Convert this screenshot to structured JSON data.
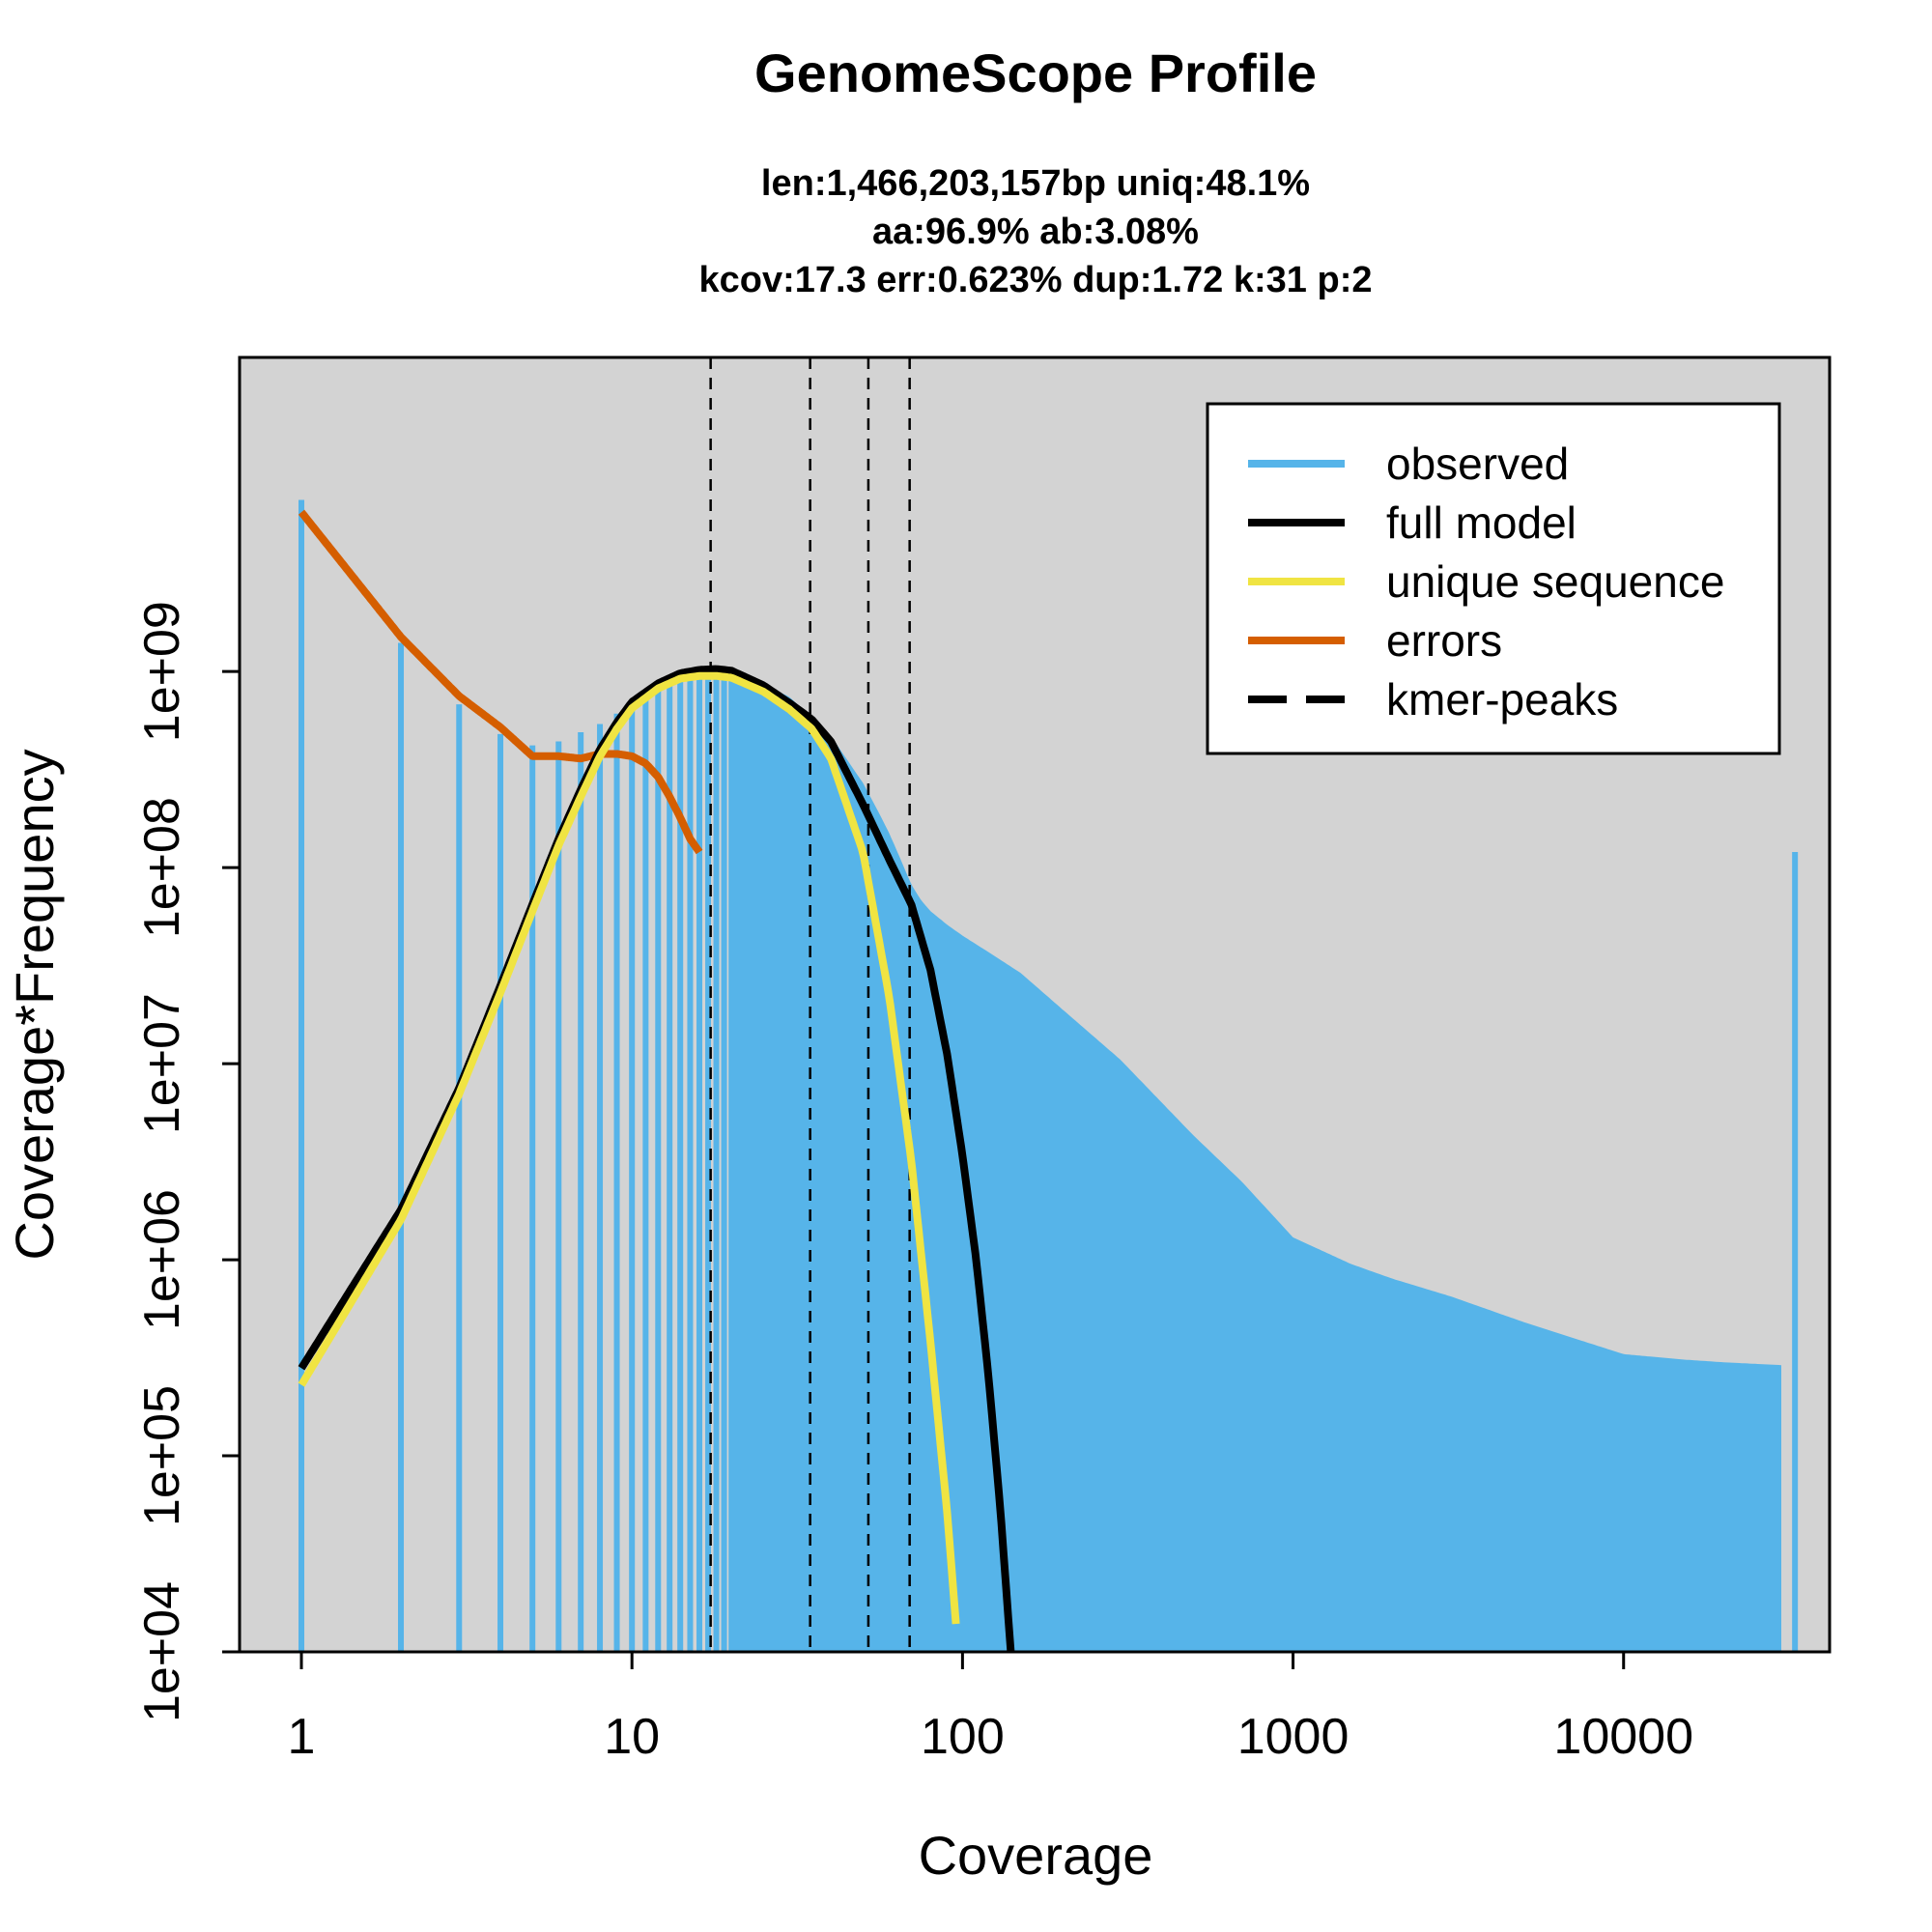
{
  "chart_data": {
    "type": "line",
    "title": "GenomeScope Profile",
    "subtitle_lines": [
      "len:1,466,203,157bp uniq:48.1%",
      "aa:96.9% ab:3.08%",
      "kcov:17.3 err:0.623%  dup:1.72  k:31 p:2"
    ],
    "xlabel": "Coverage",
    "ylabel": "Coverage*Frequency",
    "x_scale": "log",
    "y_scale": "log",
    "xlim": [
      0.65,
      42000
    ],
    "ylim": [
      10000,
      40000000000
    ],
    "x_ticks": [
      {
        "value": 1,
        "label": "1"
      },
      {
        "value": 10,
        "label": "10"
      },
      {
        "value": 100,
        "label": "100"
      },
      {
        "value": 1000,
        "label": "1000"
      },
      {
        "value": 10000,
        "label": "10000"
      }
    ],
    "y_ticks": [
      {
        "value": 10000,
        "label": "1e+04"
      },
      {
        "value": 100000,
        "label": "1e+05"
      },
      {
        "value": 1000000,
        "label": "1e+06"
      },
      {
        "value": 10000000,
        "label": "1e+07"
      },
      {
        "value": 100000000,
        "label": "1e+08"
      },
      {
        "value": 1000000000,
        "label": "1e+09"
      }
    ],
    "background_color": "#d3d3d3",
    "legend_position": "top-right",
    "legend": [
      {
        "label": "observed",
        "color": "#56b4e9",
        "style": "solid"
      },
      {
        "label": "full model",
        "color": "#000000",
        "style": "solid"
      },
      {
        "label": "unique sequence",
        "color": "#f0e442",
        "style": "solid"
      },
      {
        "label": "errors",
        "color": "#d55e00",
        "style": "solid"
      },
      {
        "label": "kmer-peaks",
        "color": "#000000",
        "style": "dashed"
      }
    ],
    "kmer_peaks": [
      17.3,
      34.6,
      51.9,
      69.2
    ],
    "series": [
      {
        "name": "observed",
        "type": "histogram",
        "color": "#56b4e9",
        "x": [
          1,
          2,
          3,
          4,
          5,
          6,
          7,
          8,
          9,
          10,
          11,
          12,
          13,
          14,
          15,
          16,
          17,
          18,
          19,
          20,
          22,
          25,
          30,
          35,
          40,
          45,
          50,
          55,
          60,
          65,
          70,
          75,
          80,
          90,
          100,
          120,
          150,
          200,
          300,
          500,
          700,
          1000,
          1500,
          2000,
          3000,
          5000,
          7000,
          10000,
          15000,
          20000,
          30000,
          33000
        ],
        "values": [
          7500000000,
          1400000000,
          680000000,
          480000000,
          420000000,
          440000000,
          490000000,
          540000000,
          610000000,
          690000000,
          760000000,
          830000000,
          890000000,
          930000000,
          980000000,
          1000000000,
          1010000000,
          1020000000,
          1010000000,
          990000000,
          950000000,
          870000000,
          740000000,
          580000000,
          470000000,
          350000000,
          270000000,
          200000000,
          150000000,
          110000000,
          82000000,
          68000000,
          60000000,
          51000000,
          45000000,
          37000000,
          29000000,
          19000000,
          10500000,
          4300000,
          2500000,
          1300000,
          950000,
          800000,
          650000,
          480000,
          400000,
          330000,
          310000,
          300000,
          290000,
          120000000
        ]
      },
      {
        "name": "full model",
        "color": "#000000",
        "x": [
          1,
          2,
          3,
          4,
          5,
          6,
          7,
          8,
          9,
          10,
          12,
          14,
          16,
          18,
          20,
          25,
          30,
          35,
          40,
          50,
          60,
          70,
          80,
          90,
          100,
          110,
          120,
          130,
          140
        ],
        "values": [
          280000,
          1800000,
          7500000,
          25000000,
          65000000,
          140000000,
          250000000,
          400000000,
          550000000,
          700000000,
          870000000,
          980000000,
          1020000000,
          1030000000,
          1010000000,
          850000000,
          690000000,
          570000000,
          440000000,
          210000000,
          110000000,
          65000000,
          30000000,
          11000000,
          3400000,
          1000000,
          250000,
          55000,
          10000
        ]
      },
      {
        "name": "unique sequence",
        "color": "#f0e442",
        "x": [
          1,
          2,
          3,
          4,
          5,
          6,
          7,
          8,
          9,
          10,
          12,
          14,
          16,
          18,
          20,
          25,
          30,
          35,
          40,
          50,
          60,
          70,
          80,
          90,
          97
        ],
        "values": [
          230000,
          1600000,
          7000000,
          23000000,
          60000000,
          130000000,
          230000000,
          370000000,
          510000000,
          650000000,
          820000000,
          920000000,
          950000000,
          950000000,
          930000000,
          790000000,
          640000000,
          510000000,
          360000000,
          120000000,
          22000000,
          3200000,
          380000,
          50000,
          10000
        ]
      },
      {
        "name": "errors",
        "color": "#d55e00",
        "x": [
          1,
          2,
          3,
          4,
          5,
          6,
          7,
          8,
          9,
          10,
          11,
          12,
          13,
          14,
          15,
          16
        ],
        "values": [
          6500000000,
          1500000000,
          750000000,
          520000000,
          370000000,
          370000000,
          360000000,
          380000000,
          380000000,
          370000000,
          340000000,
          290000000,
          230000000,
          180000000,
          140000000,
          120000000
        ]
      }
    ]
  }
}
